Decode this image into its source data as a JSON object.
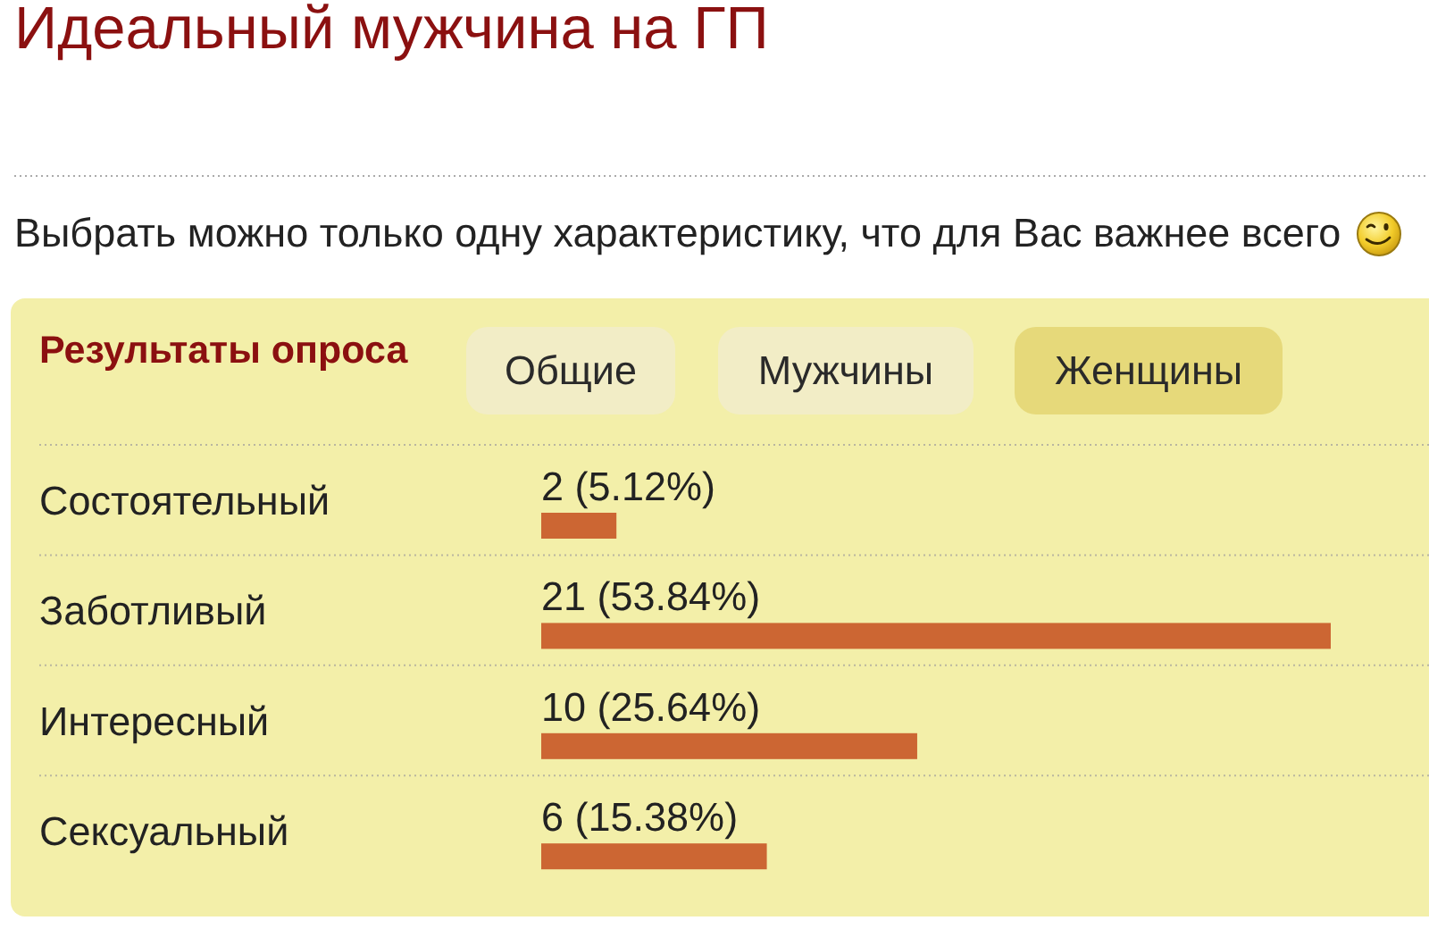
{
  "chart_data": {
    "type": "bar",
    "orientation": "horizontal",
    "title": "Идеальный мужчина на ГП",
    "subtitle": "Выбрать можно только одну характеристику, что для Вас важнее всего",
    "categories": [
      "Состоятельный",
      "Заботливый",
      "Интересный",
      "Сексуальный"
    ],
    "values": [
      2,
      21,
      10,
      6
    ],
    "value_labels": [
      "2 (5.12%)",
      "21 (53.84%)",
      "10 (25.64%)",
      "6 (15.38%)"
    ],
    "color": "#cc6633",
    "annotations": [
      "Результаты опроса",
      "Общие",
      "Мужчины",
      "Женщины"
    ]
  }
}
